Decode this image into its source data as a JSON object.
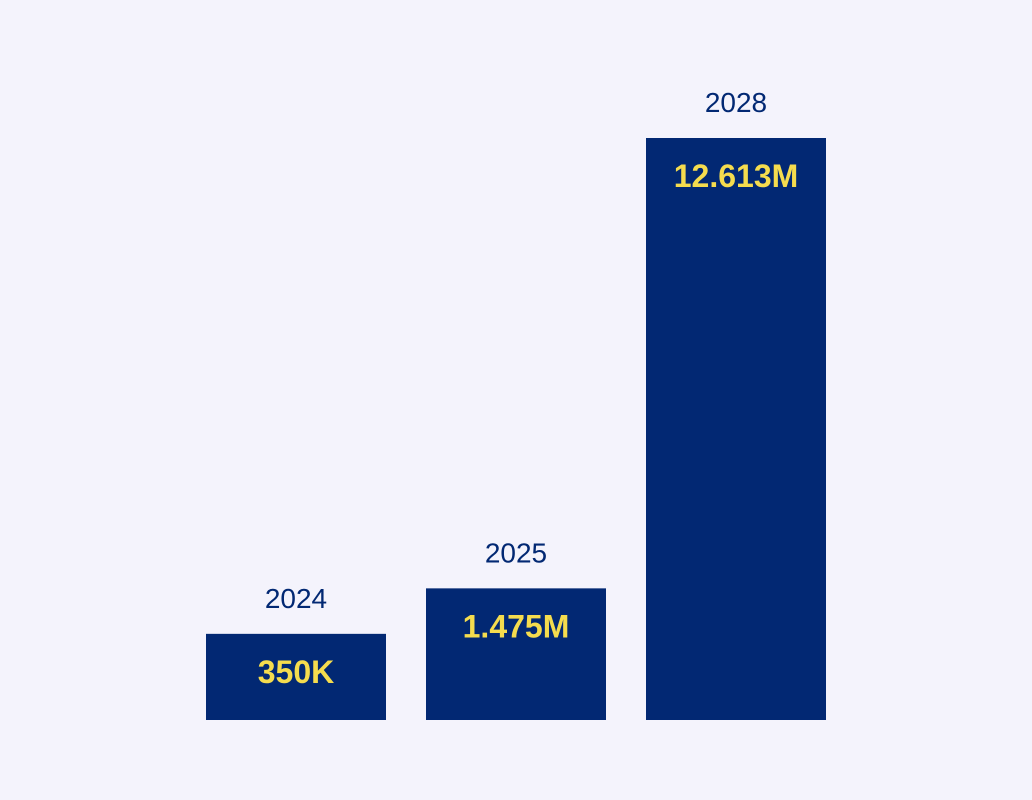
{
  "chart_data": {
    "type": "bar",
    "categories": [
      "2024",
      "2025",
      "2028"
    ],
    "values": [
      350000,
      1475000,
      12613000
    ],
    "value_labels": [
      "350K",
      "1.475M",
      "12.613M"
    ],
    "title": "",
    "xlabel": "",
    "ylabel": "",
    "ylim": [
      0,
      12613000
    ],
    "grid": false,
    "legend": "none"
  },
  "colors": {
    "background": "#f4f3fc",
    "bar": "#022873",
    "category_label": "#022873",
    "value_label": "#f5dc4e"
  }
}
